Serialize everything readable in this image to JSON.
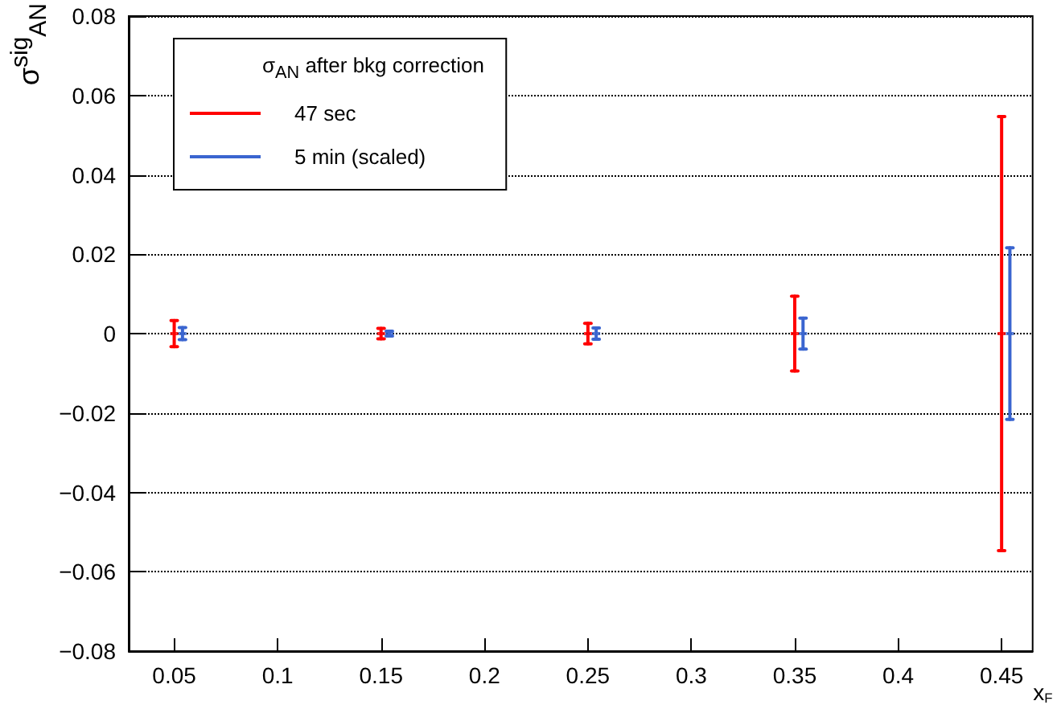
{
  "chart_data": {
    "type": "scatter",
    "ylabel": "σ$^{sig}$$_{AN}$",
    "xlabel": "x$_{F}$",
    "legend_title": "σ$_{AN}$ after bkg correction",
    "series": [
      {
        "name": "47 sec",
        "color": "#ff0000",
        "x": [
          0.05,
          0.15,
          0.25,
          0.35,
          0.45
        ],
        "values": [
          0,
          0,
          0,
          0,
          0
        ],
        "errors": [
          0.0033,
          0.0013,
          0.0026,
          0.0094,
          0.0547
        ]
      },
      {
        "name": "5 min (scaled)",
        "color": "#3a65d0",
        "x": [
          0.054,
          0.154,
          0.254,
          0.354,
          0.454
        ],
        "values": [
          0,
          0,
          0,
          0,
          0
        ],
        "errors": [
          0.0015,
          0.0006,
          0.0014,
          0.0039,
          0.0216
        ]
      }
    ],
    "line_style": "solid",
    "xlim": [
      0.028,
      0.465
    ],
    "xticks": [
      0.05,
      0.1,
      0.15,
      0.2,
      0.25,
      0.3,
      0.35,
      0.4,
      0.45
    ],
    "ylim": [
      -0.08,
      0.08
    ],
    "yticks": [
      -0.08,
      -0.06,
      -0.04,
      -0.02,
      0,
      0.02,
      0.04,
      0.06,
      0.08
    ],
    "grid": "y",
    "legend": "top left"
  }
}
